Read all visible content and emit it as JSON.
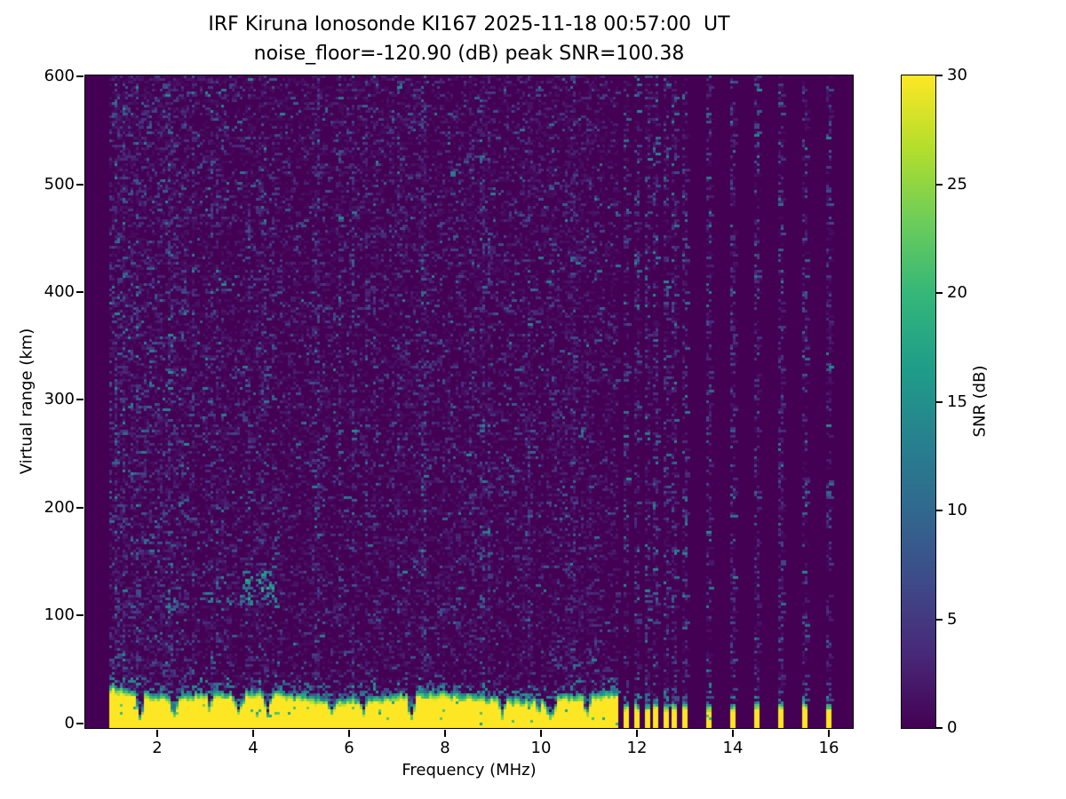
{
  "chart_data": {
    "type": "heatmap",
    "title": "IRF Kiruna Ionosonde KI167 2025-11-18 00:57:00  UT",
    "subtitle": "noise_floor=-120.90 (dB) peak SNR=100.38",
    "xlabel": "Frequency (MHz)",
    "ylabel": "Virtual range (km)",
    "colorbar_label": "SNR (dB)",
    "colormap": "viridis",
    "xlim": [
      0.5,
      16.5
    ],
    "ylim": [
      -4.5,
      601
    ],
    "clim": [
      0,
      30
    ],
    "x_ticks": [
      2,
      4,
      6,
      8,
      10,
      12,
      14,
      16
    ],
    "y_ticks": [
      0,
      100,
      200,
      300,
      400,
      500,
      600
    ],
    "colorbar_ticks": [
      0,
      5,
      10,
      15,
      20,
      25,
      30
    ],
    "grid": false,
    "legend": "colorbar-right",
    "noise_floor_db": -120.9,
    "peak_snr_db": 100.38,
    "sweep": {
      "continuous_mhz": [
        1.0,
        11.63
      ],
      "stepped_mhz": [
        11.8,
        12.0,
        12.2,
        12.4,
        12.6,
        12.8,
        13.0,
        13.5,
        14.0,
        14.5,
        15.0,
        15.5,
        16.0
      ],
      "notch_mhz": [
        1.65,
        2.35,
        3.1,
        3.7,
        4.3,
        5.65,
        6.3,
        7.3,
        9.2,
        9.95,
        10.2,
        10.95
      ],
      "ground_clutter_top_km": 30,
      "stepped_clutter_top_km": 20,
      "echo_cluster": {
        "freq_mhz": [
          3.7,
          4.5
        ],
        "range_km": [
          112,
          142
        ],
        "snr_db": 18
      },
      "echo_trace": {
        "freq_mhz": [
          2.1,
          4.6
        ],
        "range_km": [
          106,
          116
        ],
        "snr_db": 12
      },
      "background_snr_db": 0,
      "clutter_snr_db": 30
    },
    "colors": {
      "figure_background": "#ffffff",
      "cmap_low": "#440154",
      "cmap_mid": "#21918c",
      "cmap_high": "#fde725",
      "text": "#000000"
    }
  }
}
